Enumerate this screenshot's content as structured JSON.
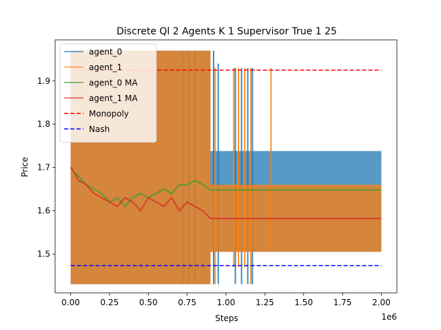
{
  "chart_data": {
    "type": "line",
    "title": "Discrete Ql 2 Agents K 1 Supervisor True 1 25",
    "xlabel": "Steps",
    "ylabel": "Price",
    "x_offset_text": "1e6",
    "xlim": [
      -0.1,
      2.1
    ],
    "ylim": [
      1.41,
      1.995
    ],
    "x_ticks": [
      0.0,
      0.25,
      0.5,
      0.75,
      1.0,
      1.25,
      1.5,
      1.75,
      2.0
    ],
    "x_tick_labels": [
      "0.00",
      "0.25",
      "0.50",
      "0.75",
      "1.00",
      "1.25",
      "1.50",
      "1.75",
      "2.00"
    ],
    "y_ticks": [
      1.5,
      1.6,
      1.7,
      1.8,
      1.9
    ],
    "y_tick_labels": [
      "1.5",
      "1.6",
      "1.7",
      "1.8",
      "1.9"
    ],
    "legend_position": "upper-left",
    "series": [
      {
        "name": "agent_0",
        "color": "#1f77b4",
        "kind": "band",
        "description_segments": [
          {
            "x_start": 0.0,
            "x_end": 0.9,
            "low": 1.43,
            "high": 1.97
          },
          {
            "x_start": 0.9,
            "x_end": 2.0,
            "low": 1.505,
            "high": 1.738
          }
        ],
        "spikes": [
          {
            "x": 0.72,
            "low": 1.43,
            "high": 1.97
          },
          {
            "x": 0.76,
            "low": 1.43,
            "high": 1.97
          },
          {
            "x": 0.8,
            "low": 1.43,
            "high": 1.97
          },
          {
            "x": 0.92,
            "low": 1.43,
            "high": 1.97
          },
          {
            "x": 0.95,
            "low": 1.43,
            "high": 1.94
          },
          {
            "x": 1.06,
            "low": 1.43,
            "high": 1.93
          },
          {
            "x": 1.1,
            "low": 1.43,
            "high": 1.93
          },
          {
            "x": 1.14,
            "low": 1.43,
            "high": 1.93
          },
          {
            "x": 1.17,
            "low": 1.43,
            "high": 1.93
          }
        ]
      },
      {
        "name": "agent_1",
        "color": "#ff7f0e",
        "kind": "band",
        "description_segments": [
          {
            "x_start": 0.0,
            "x_end": 0.9,
            "low": 1.43,
            "high": 1.97
          },
          {
            "x_start": 0.9,
            "x_end": 2.0,
            "low": 1.505,
            "high": 1.66
          }
        ],
        "spikes": [
          {
            "x": 0.93,
            "low": 1.43,
            "high": 1.93
          },
          {
            "x": 1.05,
            "low": 1.47,
            "high": 1.93
          },
          {
            "x": 1.08,
            "low": 1.47,
            "high": 1.93
          },
          {
            "x": 1.12,
            "low": 1.47,
            "high": 1.93
          },
          {
            "x": 1.16,
            "low": 1.43,
            "high": 1.93
          },
          {
            "x": 1.29,
            "low": 1.505,
            "high": 1.93
          }
        ]
      },
      {
        "name": "agent_0 MA",
        "color": "#2ca02c",
        "kind": "line",
        "x": [
          0.0,
          0.02,
          0.05,
          0.1,
          0.15,
          0.2,
          0.25,
          0.3,
          0.35,
          0.4,
          0.45,
          0.5,
          0.55,
          0.6,
          0.65,
          0.7,
          0.75,
          0.8,
          0.85,
          0.9,
          1.0,
          1.5,
          2.0
        ],
        "y": [
          1.7,
          1.69,
          1.68,
          1.66,
          1.65,
          1.64,
          1.62,
          1.63,
          1.61,
          1.63,
          1.64,
          1.63,
          1.64,
          1.65,
          1.64,
          1.66,
          1.66,
          1.67,
          1.66,
          1.648,
          1.648,
          1.648,
          1.648
        ]
      },
      {
        "name": "agent_1 MA",
        "color": "#d62728",
        "kind": "line",
        "x": [
          0.0,
          0.02,
          0.05,
          0.1,
          0.15,
          0.2,
          0.25,
          0.3,
          0.35,
          0.4,
          0.45,
          0.5,
          0.55,
          0.6,
          0.65,
          0.7,
          0.75,
          0.8,
          0.85,
          0.9,
          1.0,
          1.5,
          2.0
        ],
        "y": [
          1.7,
          1.69,
          1.67,
          1.66,
          1.64,
          1.63,
          1.62,
          1.61,
          1.63,
          1.62,
          1.6,
          1.63,
          1.62,
          1.61,
          1.63,
          1.6,
          1.62,
          1.61,
          1.6,
          1.582,
          1.582,
          1.582,
          1.582
        ]
      },
      {
        "name": "Monopoly",
        "color": "#ff0000",
        "kind": "dashed",
        "x": [
          0.0,
          2.0
        ],
        "y": [
          1.925,
          1.925
        ]
      },
      {
        "name": "Nash",
        "color": "#0000ff",
        "kind": "dashed",
        "x": [
          0.0,
          2.0
        ],
        "y": [
          1.473,
          1.473
        ]
      }
    ]
  }
}
